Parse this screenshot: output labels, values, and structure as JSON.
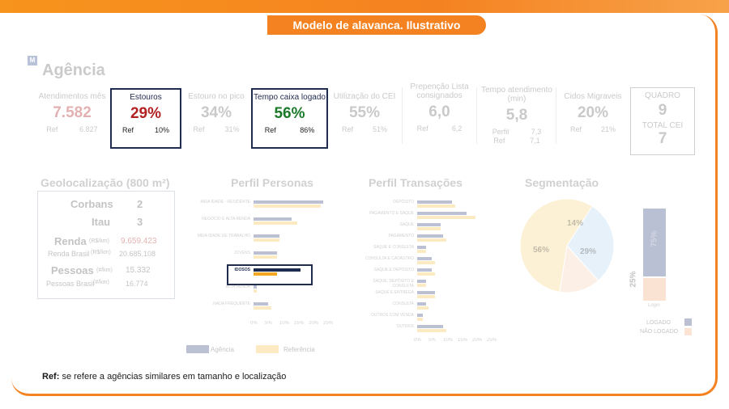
{
  "banner": "Modelo de alavanca. Ilustrativo",
  "page_title": "Agência",
  "logo_letter": "M",
  "kpis": [
    {
      "label": "Atendimentos mês",
      "value": "7.582",
      "ref_label": "Ref",
      "ref_value": "6.827"
    },
    {
      "label": "Estouros",
      "value": "29%",
      "ref_label": "Ref",
      "ref_value": "10%"
    },
    {
      "label": "Estouro no pico",
      "value": "34%",
      "ref_label": "Ref",
      "ref_value": "31%"
    },
    {
      "label": "Tempo caixa logado",
      "value": "56%",
      "ref_label": "Ref",
      "ref_value": "86%"
    },
    {
      "label": "Utilização do CEI",
      "value": "55%",
      "ref_label": "Ref",
      "ref_value": "51%"
    },
    {
      "label": "Prepenção Lista consignados",
      "value": "6,0",
      "ref_label": "Ref",
      "ref_value": "6,2"
    },
    {
      "label": "Tempo atendimento (min)",
      "value": "5,8",
      "perfil_label": "Perfil",
      "perfil_value": "7,3",
      "ref_label": "Ref",
      "ref_value": "7,1"
    },
    {
      "label": "Cidos Migraveis",
      "value": "20%",
      "ref_label": "Ref",
      "ref_value": "21%"
    }
  ],
  "quadro": {
    "label": "QUADRO",
    "value": "9",
    "total_label": "TOTAL CEI",
    "total_value": "7"
  },
  "sections": {
    "geo": "Geolocalização (800 m²)",
    "personas": "Perfil Personas",
    "transacoes": "Perfil Transações",
    "segmentacao": "Segmentação"
  },
  "geo": {
    "corbans_label": "Corbans",
    "corbans": "2",
    "itau_label": "Itau",
    "itau": "3",
    "renda_label": "Renda",
    "renda_unit": "(R$/km)",
    "renda": "9.659.423",
    "renda_brasil_label": "Renda Brasil",
    "renda_brasil_unit": "(R$/km)",
    "renda_brasil": "20.685.108",
    "pessoas_label": "Pessoas",
    "pessoas_unit": "(#/km)",
    "pessoas": "15.332",
    "pessoas_brasil_label": "Pessoas Brasil",
    "pessoas_brasil_unit": "(#/km)",
    "pessoas_brasil": "16.774"
  },
  "chart_data": [
    {
      "type": "bar",
      "orientation": "horizontal",
      "title": "Perfil Personas",
      "categories": [
        "MEIA IDADE - RESIDENTE",
        "NEGÓCIO E ALTA RENDA",
        "MEIA IDADE DE TRABALHO",
        "JOVENS",
        "IDOSOS",
        "ALTA RENDA",
        "NADA FREQUENTE"
      ],
      "series": [
        {
          "name": "Agência",
          "values": [
            24,
            13,
            9,
            8,
            16,
            1,
            5
          ]
        },
        {
          "name": "Referência",
          "values": [
            23,
            15,
            9,
            8,
            8,
            1,
            6
          ]
        }
      ],
      "xticks": [
        "0%",
        "5%",
        "10%",
        "15%",
        "20%",
        "25%"
      ],
      "xlim": [
        0,
        25
      ],
      "highlight": "IDOSOS"
    },
    {
      "type": "bar",
      "orientation": "horizontal",
      "title": "Perfil Transações",
      "categories": [
        "DEPÓSITO",
        "PAGAMENTO E SAQUE",
        "SAQUE",
        "PAGAMENTO",
        "SAQUE E CONSULTA",
        "CONSULTA E CADASTRO",
        "SAQUE E DEPÓSITO",
        "SAQUE, DEPÓSITO E CONSULTA",
        "SAQUE E ENTREGA",
        "CONSULTA",
        "OUTROS COM VENDA",
        "OUTROS"
      ],
      "series": [
        {
          "name": "Agência",
          "values": [
            12,
            17,
            8,
            9,
            3,
            5,
            5,
            3,
            6,
            3,
            2,
            9
          ]
        },
        {
          "name": "Referência",
          "values": [
            13,
            20,
            8,
            10,
            3,
            6,
            6,
            3,
            6,
            4,
            2,
            10
          ]
        }
      ],
      "xticks": [
        "0%",
        "5%",
        "10%",
        "15%",
        "20%",
        "25%"
      ],
      "xlim": [
        0,
        25
      ]
    },
    {
      "type": "pie",
      "title": "Segmentação",
      "labels": [
        "56%",
        "29%",
        "14%"
      ],
      "values": [
        56,
        29,
        14
      ]
    },
    {
      "type": "bar",
      "orientation": "vertical",
      "categories": [
        "Login"
      ],
      "series": [
        {
          "name": "LOGADO",
          "values": [
            75
          ]
        },
        {
          "name": "NÃO LOGADO",
          "values": [
            25
          ]
        }
      ],
      "labels": [
        "75%",
        "25%"
      ]
    }
  ],
  "legend": {
    "agencia": "Agência",
    "referencia": "Referência",
    "logado": "LOGADO",
    "nao_logado": "NÃO LOGADO",
    "login": "Login"
  },
  "note_bold": "Ref:",
  "note_text": " se refere a agências similares em tamanho e localização",
  "colors": {
    "navy": "#1f2b4f",
    "accent": "#f58220",
    "red": "#b22222",
    "green": "#1a7a2a",
    "yellow": "#f5a623",
    "blue_pie": "#9dc3e6",
    "peach": "#f4b183"
  }
}
